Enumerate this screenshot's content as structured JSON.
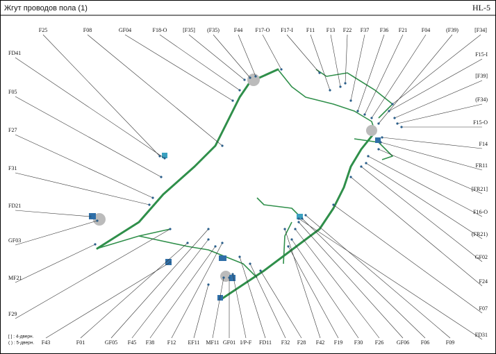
{
  "header": {
    "title": "Жгут проводов пола (1)",
    "code": "HL-5"
  },
  "labels": {
    "top": [
      "F25",
      "F08",
      "GF04",
      "F18-O",
      "[F35]",
      "(F35)",
      "F44",
      "F17-O",
      "F17-I",
      "F11",
      "F13",
      "F22",
      "F37",
      "F36",
      "F21",
      "F04",
      "(F39)",
      "[F34]"
    ],
    "right": [
      "F15-I",
      "[F39]",
      "(F34)",
      "F15-O",
      "F14",
      "FR11",
      "[FR21]",
      "F16-O",
      "(FR21)",
      "GF02",
      "F24",
      "F07",
      "FD31"
    ],
    "left": [
      "FD41",
      "F05",
      "F27",
      "F31",
      "FD21",
      "GF03",
      "MF21",
      "F29"
    ],
    "bottom": [
      "F43",
      "F01",
      "GF05",
      "F45",
      "F38",
      "F12",
      "EF11",
      "MF11",
      "GF01",
      "I/P-F",
      "FD11",
      "F32",
      "F28",
      "F42",
      "F19",
      "F30",
      "F26",
      "GF06",
      "F06",
      "F09"
    ]
  },
  "legend": [
    "[ ] : 4-дверн.",
    "( ) : 5-дверн."
  ]
}
